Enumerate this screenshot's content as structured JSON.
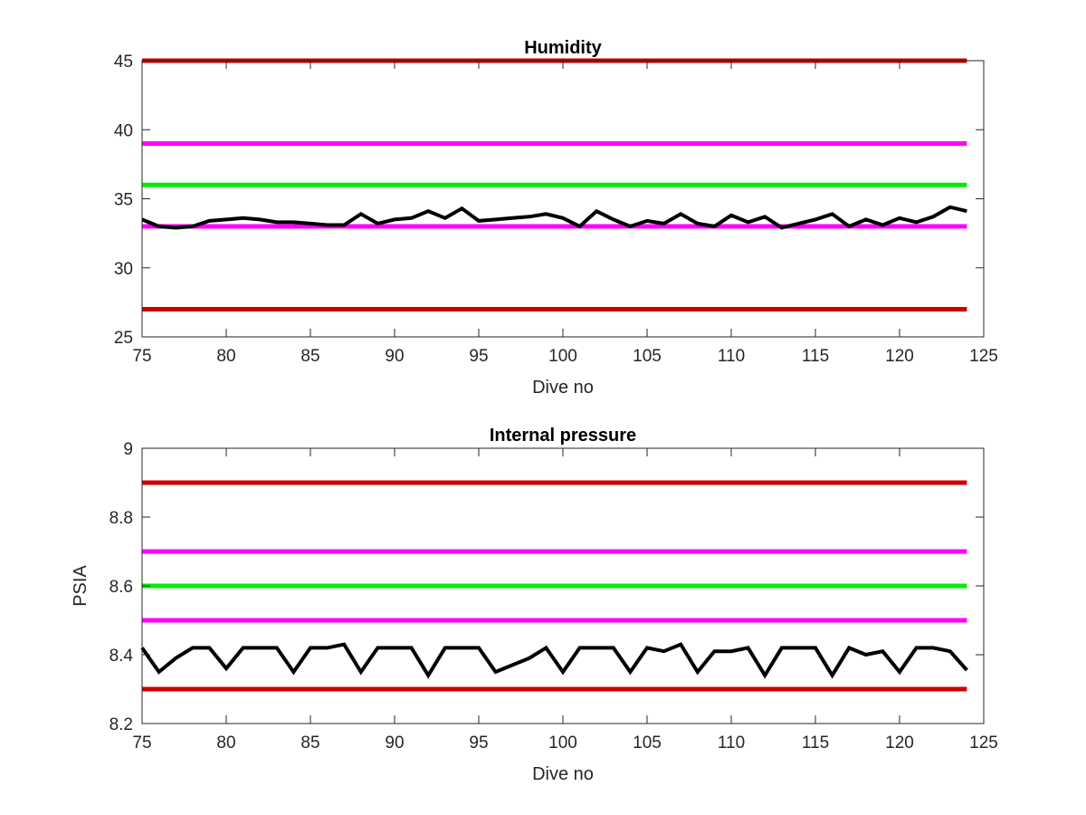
{
  "chart_data": [
    {
      "type": "line",
      "title": "Humidity",
      "xlabel": "Dive no",
      "ylabel": "",
      "xlim": [
        75,
        125
      ],
      "ylim": [
        25,
        45
      ],
      "xticks": [
        75,
        80,
        85,
        90,
        95,
        100,
        105,
        110,
        115,
        120,
        125
      ],
      "yticks": [
        25,
        30,
        35,
        40,
        45
      ],
      "grid": false,
      "threshold_lines": [
        {
          "y": 45,
          "x": [
            75,
            124
          ],
          "color": "#CC0000"
        },
        {
          "y": 39,
          "x": [
            75,
            124
          ],
          "color": "#FF00FF"
        },
        {
          "y": 36,
          "x": [
            75,
            124
          ],
          "color": "#00EE00"
        },
        {
          "y": 33,
          "x": [
            75,
            124
          ],
          "color": "#FF00FF"
        },
        {
          "y": 27,
          "x": [
            75,
            124
          ],
          "color": "#CC0000"
        }
      ],
      "series": [
        {
          "color": "#000000",
          "x": [
            75,
            76,
            77,
            78,
            79,
            80,
            81,
            82,
            83,
            84,
            85,
            86,
            87,
            88,
            89,
            90,
            91,
            92,
            93,
            94,
            95,
            96,
            97,
            98,
            99,
            100,
            101,
            102,
            103,
            104,
            105,
            106,
            107,
            108,
            109,
            110,
            111,
            112,
            113,
            114,
            115,
            116,
            117,
            118,
            119,
            120,
            121,
            122,
            123,
            124
          ],
          "values": [
            33.5,
            33.0,
            32.9,
            33.0,
            33.4,
            33.5,
            33.6,
            33.5,
            33.3,
            33.3,
            33.2,
            33.1,
            33.1,
            33.9,
            33.2,
            33.5,
            33.6,
            34.1,
            33.6,
            34.3,
            33.4,
            33.5,
            33.6,
            33.7,
            33.9,
            33.6,
            33.0,
            34.1,
            33.5,
            33.0,
            33.4,
            33.2,
            33.9,
            33.2,
            33.0,
            33.8,
            33.3,
            33.7,
            32.9,
            33.2,
            33.5,
            33.9,
            33.0,
            33.5,
            33.1,
            33.6,
            33.3,
            33.7,
            34.4,
            34.1
          ]
        }
      ]
    },
    {
      "type": "line",
      "title": "Internal pressure",
      "xlabel": "Dive no",
      "ylabel": "PSIA",
      "xlim": [
        75,
        125
      ],
      "ylim": [
        8.2,
        9
      ],
      "xticks": [
        75,
        80,
        85,
        90,
        95,
        100,
        105,
        110,
        115,
        120,
        125
      ],
      "yticks": [
        8.2,
        8.4,
        8.6,
        8.8,
        9
      ],
      "ytick_labels": [
        "8.2",
        "8.4",
        "8.6",
        "8.8",
        "9"
      ],
      "grid": false,
      "threshold_lines": [
        {
          "y": 8.9,
          "x": [
            75,
            124
          ],
          "color": "#CC0000"
        },
        {
          "y": 8.7,
          "x": [
            75,
            124
          ],
          "color": "#FF00FF"
        },
        {
          "y": 8.6,
          "x": [
            75,
            124
          ],
          "color": "#00EE00"
        },
        {
          "y": 8.5,
          "x": [
            75,
            124
          ],
          "color": "#FF00FF"
        },
        {
          "y": 8.3,
          "x": [
            75,
            124
          ],
          "color": "#CC0000"
        }
      ],
      "series": [
        {
          "color": "#000000",
          "x": [
            75,
            76,
            77,
            78,
            79,
            80,
            81,
            82,
            83,
            84,
            85,
            86,
            87,
            88,
            89,
            90,
            91,
            92,
            93,
            94,
            95,
            96,
            97,
            98,
            99,
            100,
            101,
            102,
            103,
            104,
            105,
            106,
            107,
            108,
            109,
            110,
            111,
            112,
            113,
            114,
            115,
            116,
            117,
            118,
            119,
            120,
            121,
            122,
            123,
            124
          ],
          "values": [
            8.42,
            8.35,
            8.39,
            8.42,
            8.42,
            8.36,
            8.42,
            8.42,
            8.42,
            8.35,
            8.42,
            8.42,
            8.43,
            8.35,
            8.42,
            8.42,
            8.42,
            8.34,
            8.42,
            8.42,
            8.42,
            8.35,
            8.37,
            8.39,
            8.42,
            8.35,
            8.42,
            8.42,
            8.42,
            8.35,
            8.42,
            8.41,
            8.43,
            8.35,
            8.41,
            8.41,
            8.42,
            8.34,
            8.42,
            8.42,
            8.42,
            8.34,
            8.42,
            8.4,
            8.41,
            8.35,
            8.42,
            8.42,
            8.41,
            8.355
          ]
        }
      ]
    }
  ]
}
